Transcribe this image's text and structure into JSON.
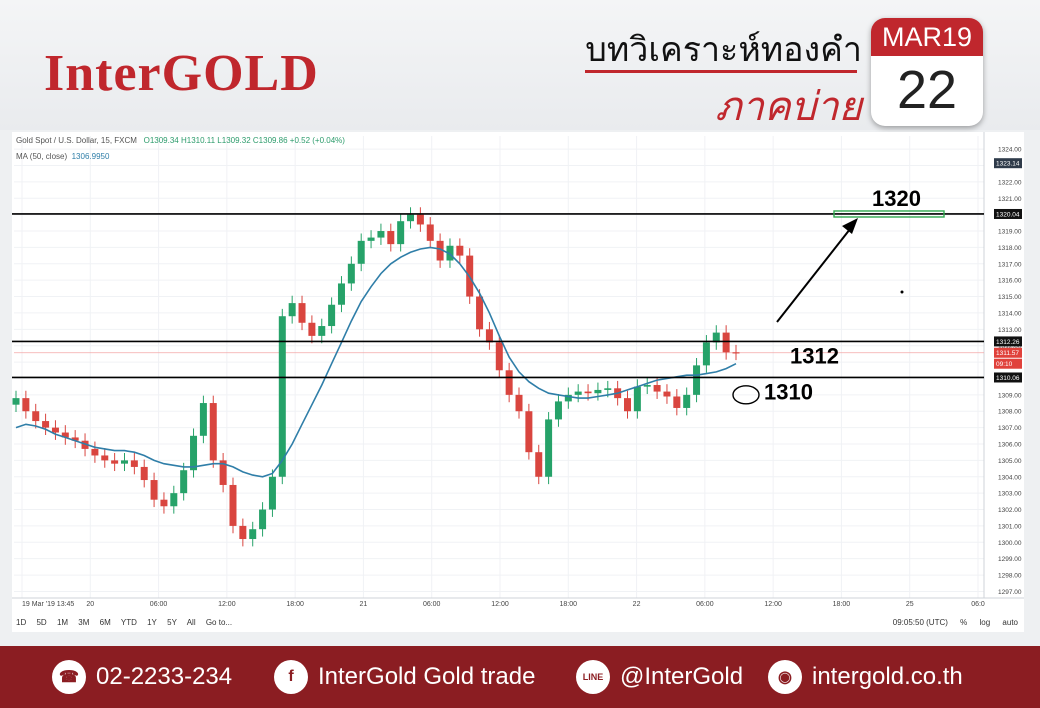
{
  "header": {
    "logo": "InterGOLD",
    "thai_title": "บทวิเคราะห์ทองคำ",
    "thai_subtitle": "ภาคบ่าย",
    "cal_month": "MAR19",
    "cal_day": "22"
  },
  "chart": {
    "symbol_line": "Gold Spot / U.S. Dollar, 15, FXCM",
    "ohlc": "O1309.34 H1310.11 L1309.32 C1309.86 +0.52 (+0.04%)",
    "ma_label": "MA (50, close)",
    "ma_value": "1306.9950",
    "timeframes": [
      "1D",
      "5D",
      "1M",
      "3M",
      "6M",
      "YTD",
      "1Y",
      "5Y",
      "All"
    ],
    "goto": "Go to...",
    "clock": "09:05:50 (UTC)",
    "percent": "%",
    "log": "log",
    "auto": "auto"
  },
  "footer": {
    "phone": "02-2233-234",
    "facebook": "InterGold Gold trade",
    "line": "@InterGold",
    "website": "intergold.co.th"
  },
  "chart_data": {
    "type": "line",
    "ylim": [
      1296.6,
      1324.8
    ],
    "y_ticks": [
      1297,
      1298,
      1299,
      1300,
      1301,
      1302,
      1303,
      1304,
      1305,
      1306,
      1307,
      1308,
      1309,
      1310,
      1311,
      1312,
      1313,
      1314,
      1315,
      1316,
      1317,
      1318,
      1319,
      1320,
      1321,
      1322,
      1323,
      1324
    ],
    "x_ticks": [
      "19 Mar '19  13:45",
      "20",
      "06:00",
      "12:00",
      "18:00",
      "21",
      "06:00",
      "12:00",
      "18:00",
      "22",
      "06:00",
      "12:00",
      "18:00",
      "25",
      "06:0"
    ],
    "price_labels": [
      "1323.14",
      "1320.04",
      "1312.26",
      "1311.57",
      "09:10",
      "1310.06"
    ],
    "levels": [
      {
        "value": 1320.04,
        "label": "1320"
      },
      {
        "value": 1312.26,
        "label": "1312"
      },
      {
        "value": 1310.06,
        "label": "1310"
      }
    ],
    "price_series": [
      1308.8,
      1308.0,
      1307.4,
      1307.0,
      1306.7,
      1306.4,
      1306.2,
      1305.7,
      1305.3,
      1305.0,
      1304.8,
      1305.0,
      1304.6,
      1303.8,
      1302.6,
      1302.2,
      1303.0,
      1304.4,
      1306.5,
      1308.5,
      1305.0,
      1303.5,
      1301.0,
      1300.2,
      1300.8,
      1302.0,
      1304.0,
      1313.8,
      1314.6,
      1313.4,
      1312.6,
      1313.2,
      1314.5,
      1315.8,
      1317.0,
      1318.4,
      1318.6,
      1319.0,
      1318.2,
      1319.6,
      1320.0,
      1319.4,
      1318.4,
      1317.2,
      1318.1,
      1317.5,
      1315.0,
      1313.0,
      1312.2,
      1310.5,
      1309.0,
      1308.0,
      1305.5,
      1304.0,
      1307.5,
      1308.6,
      1309.0,
      1309.2,
      1309.1,
      1309.3,
      1309.4,
      1308.8,
      1308.0,
      1309.5,
      1309.6,
      1309.2,
      1308.9,
      1308.2,
      1309.0,
      1310.8,
      1312.2,
      1312.8,
      1311.6,
      1311.57
    ],
    "ma_series": [
      1307.0,
      1307.2,
      1307.1,
      1306.9,
      1306.6,
      1306.4,
      1306.2,
      1306.0,
      1305.8,
      1305.7,
      1305.6,
      1305.6,
      1305.5,
      1305.3,
      1305.0,
      1304.8,
      1304.7,
      1304.6,
      1304.6,
      1304.7,
      1304.8,
      1304.8,
      1304.6,
      1304.3,
      1304.1,
      1304.0,
      1304.2,
      1305.0,
      1306.0,
      1307.2,
      1308.4,
      1309.6,
      1310.9,
      1312.2,
      1313.5,
      1314.7,
      1315.6,
      1316.4,
      1317.0,
      1317.4,
      1317.7,
      1317.9,
      1318.0,
      1317.9,
      1317.6,
      1317.0,
      1316.2,
      1315.2,
      1314.0,
      1312.6,
      1311.3,
      1310.4,
      1309.8,
      1309.4,
      1309.1,
      1309.0,
      1308.9,
      1308.8,
      1308.8,
      1308.9,
      1309.0,
      1309.1,
      1309.3,
      1309.5,
      1309.7,
      1309.9,
      1310.0,
      1310.1,
      1310.2,
      1310.2,
      1310.3,
      1310.4,
      1310.6,
      1310.9
    ]
  }
}
